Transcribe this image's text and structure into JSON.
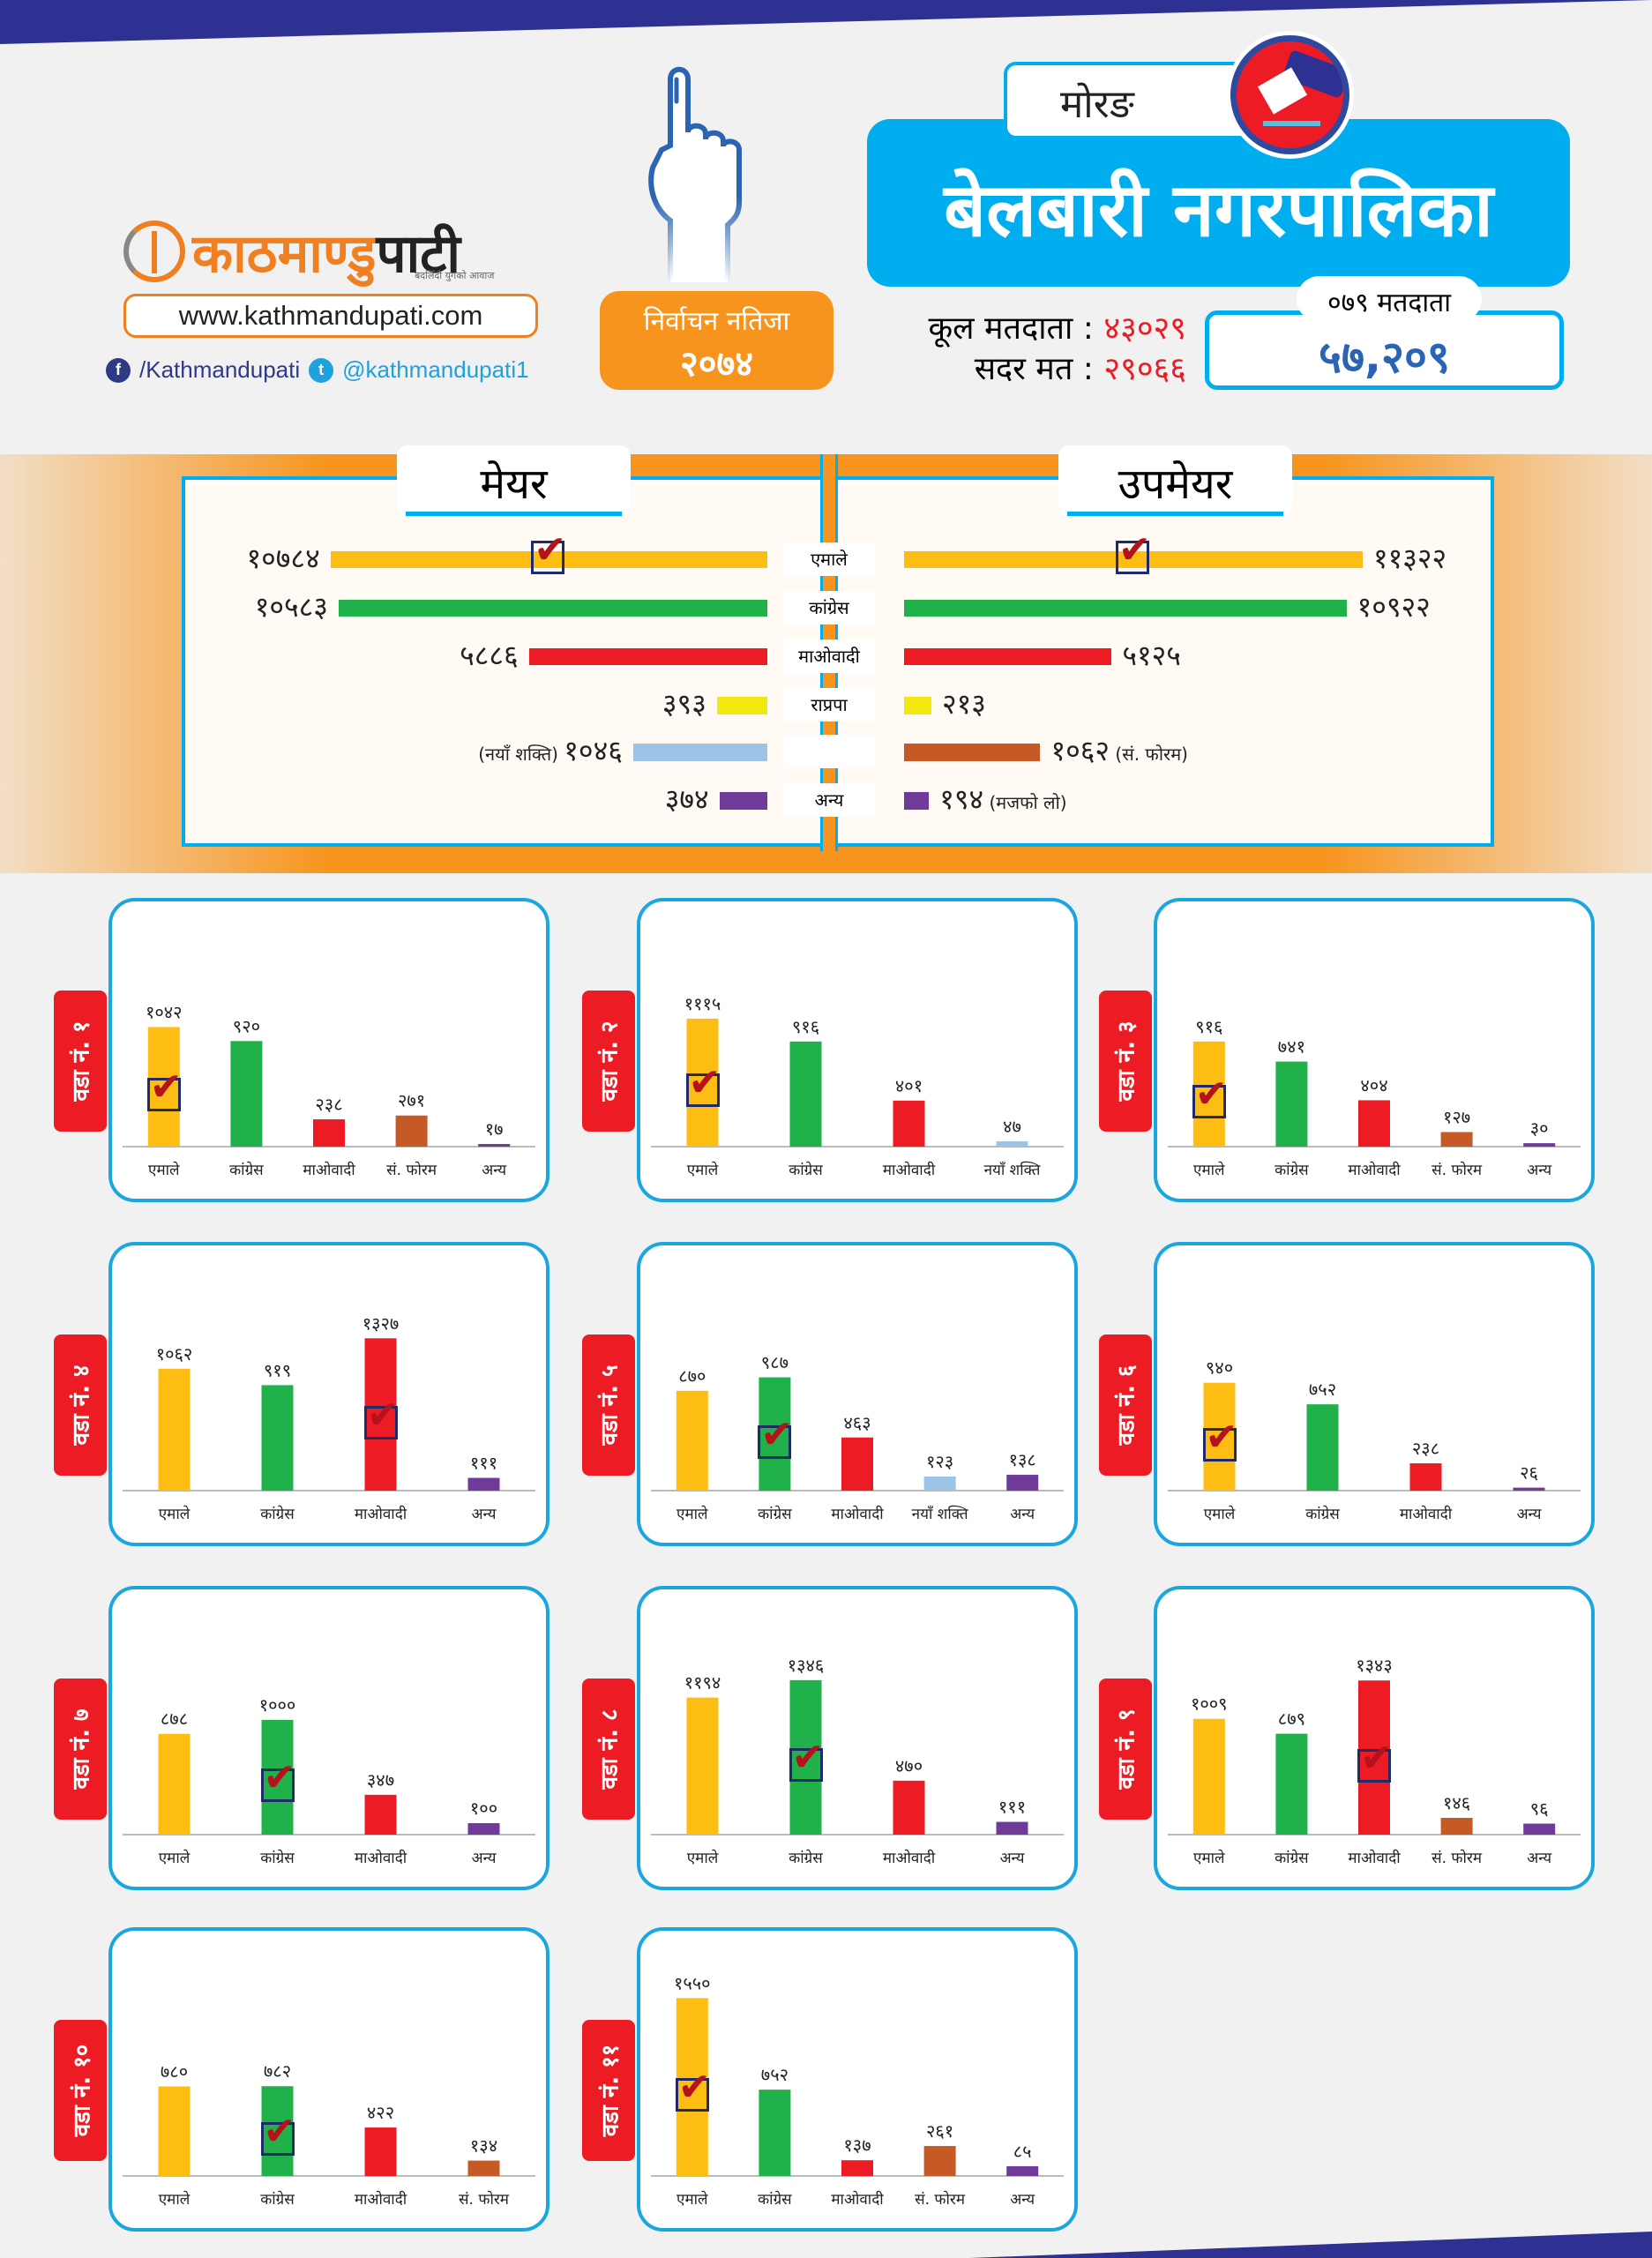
{
  "header": {
    "brand_part1": "काठमाण्डु",
    "brand_part2": "पाटी",
    "tagline": "बदलिँदो युगको आवाज",
    "website": "www.kathmandupati.com",
    "facebook": "/Kathmandupati",
    "twitter": "@kathmandupati1",
    "badge_line1": "निर्वाचन नतिजा",
    "badge_line2": "२०७४",
    "district": "मोरङ",
    "municipality": "बेलबारी नगरपालिका",
    "total_voters_label": "कूल मतदाता :",
    "total_voters": "४३०२९",
    "valid_votes_label": "सदर मत :",
    "valid_votes": "२९०६६",
    "voters_079_label": "०७९ मतदाता",
    "voters_079": "५७,२०९"
  },
  "colors": {
    "एमाले": "#fdbd13",
    "कांग्रेस": "#21b14b",
    "माओवादी": "#ed1c24",
    "राप्रपा": "#f2e80f",
    "नयाँ शक्ति": "#9dc3e6",
    "सं. फोरम": "#c55a26",
    "अन्य": "#6f3a98",
    "accent": "#00aeef",
    "orange": "#f7941d"
  },
  "chart_data": [
    {
      "type": "bar",
      "orientation": "horizontal",
      "title": "मेयर",
      "categories": [
        "एमाले",
        "कांग्रेस",
        "माओवादी",
        "राप्रपा",
        "नयाँ शक्ति",
        "अन्य"
      ],
      "values": [
        10784,
        10583,
        5886,
        393,
        1046,
        374
      ],
      "labels": [
        "१०७८४",
        "१०५८३",
        "५८८६",
        "३९३",
        "१०४६",
        "३७४"
      ],
      "notes": [
        "",
        "",
        "",
        "",
        "(नयाँ शक्ति)",
        ""
      ],
      "winner": "एमाले"
    },
    {
      "type": "bar",
      "orientation": "horizontal",
      "title": "उपमेयर",
      "categories": [
        "एमाले",
        "कांग्रेस",
        "माओवादी",
        "राप्रपा",
        "सं. फोरम",
        "अन्य"
      ],
      "values": [
        11322,
        10922,
        5125,
        213,
        1062,
        194
      ],
      "labels": [
        "११३२२",
        "१०९२२",
        "५१२५",
        "२१३",
        "१०६२",
        "१९४"
      ],
      "notes": [
        "",
        "",
        "",
        "",
        "(सं. फोरम)",
        "(मजफो लो)"
      ],
      "winner": "एमाले"
    },
    {
      "type": "bar",
      "title": "वडा नं. १",
      "categories": [
        "एमाले",
        "कांग्रेस",
        "माओवादी",
        "सं. फोरम",
        "अन्य"
      ],
      "values": [
        1042,
        920,
        238,
        271,
        17
      ],
      "labels": [
        "१०४२",
        "९२०",
        "२३८",
        "२७१",
        "१७"
      ],
      "winner": "एमाले"
    },
    {
      "type": "bar",
      "title": "वडा नं. २",
      "categories": [
        "एमाले",
        "कांग्रेस",
        "माओवादी",
        "नयाँ शक्ति"
      ],
      "values": [
        1115,
        916,
        401,
        47
      ],
      "labels": [
        "१११५",
        "९१६",
        "४०१",
        "४७"
      ],
      "winner": "एमाले"
    },
    {
      "type": "bar",
      "title": "वडा नं. ३",
      "categories": [
        "एमाले",
        "कांग्रेस",
        "माओवादी",
        "सं. फोरम",
        "अन्य"
      ],
      "values": [
        916,
        741,
        404,
        127,
        30
      ],
      "labels": [
        "९१६",
        "७४१",
        "४०४",
        "१२७",
        "३०"
      ],
      "winner": "एमाले"
    },
    {
      "type": "bar",
      "title": "वडा नं. ४",
      "categories": [
        "एमाले",
        "कांग्रेस",
        "माओवादी",
        "अन्य"
      ],
      "values": [
        1062,
        919,
        1327,
        111
      ],
      "labels": [
        "१०६२",
        "९१९",
        "१३२७",
        "१११"
      ],
      "winner": "माओवादी"
    },
    {
      "type": "bar",
      "title": "वडा नं. ५",
      "categories": [
        "एमाले",
        "कांग्रेस",
        "माओवादी",
        "नयाँ शक्ति",
        "अन्य"
      ],
      "values": [
        870,
        987,
        463,
        123,
        138
      ],
      "labels": [
        "८७०",
        "९८७",
        "४६३",
        "१२३",
        "१३८"
      ],
      "winner": "कांग्रेस"
    },
    {
      "type": "bar",
      "title": "वडा नं. ६",
      "categories": [
        "एमाले",
        "कांग्रेस",
        "माओवादी",
        "अन्य"
      ],
      "values": [
        940,
        752,
        238,
        26
      ],
      "labels": [
        "९४०",
        "७५२",
        "२३८",
        "२६"
      ],
      "winner": "एमाले"
    },
    {
      "type": "bar",
      "title": "वडा नं. ७",
      "categories": [
        "एमाले",
        "कांग्रेस",
        "माओवादी",
        "अन्य"
      ],
      "values": [
        878,
        1000,
        347,
        100
      ],
      "labels": [
        "८७८",
        "१०००",
        "३४७",
        "१००"
      ],
      "winner": "कांग्रेस"
    },
    {
      "type": "bar",
      "title": "वडा नं. ८",
      "categories": [
        "एमाले",
        "कांग्रेस",
        "माओवादी",
        "अन्य"
      ],
      "values": [
        1194,
        1346,
        470,
        111
      ],
      "labels": [
        "११९४",
        "१३४६",
        "४७०",
        "१११"
      ],
      "winner": "कांग्रेस"
    },
    {
      "type": "bar",
      "title": "वडा नं. ९",
      "categories": [
        "एमाले",
        "कांग्रेस",
        "माओवादी",
        "सं. फोरम",
        "अन्य"
      ],
      "values": [
        1009,
        879,
        1343,
        146,
        96
      ],
      "labels": [
        "१००९",
        "८७९",
        "१३४३",
        "१४६",
        "९६"
      ],
      "winner": "माओवादी"
    },
    {
      "type": "bar",
      "title": "वडा नं. १०",
      "categories": [
        "एमाले",
        "कांग्रेस",
        "माओवादी",
        "सं. फोरम"
      ],
      "values": [
        780,
        782,
        422,
        134
      ],
      "labels": [
        "७८०",
        "७८२",
        "४२२",
        "१३४"
      ],
      "winner": "कांग्रेस"
    },
    {
      "type": "bar",
      "title": "वडा नं. ११",
      "categories": [
        "एमाले",
        "कांग्रेस",
        "माओवादी",
        "सं. फोरम",
        "अन्य"
      ],
      "values": [
        1550,
        752,
        137,
        261,
        85
      ],
      "labels": [
        "१५५०",
        "७५२",
        "१३७",
        "२६१",
        "८५"
      ],
      "winner": "एमाले"
    }
  ]
}
